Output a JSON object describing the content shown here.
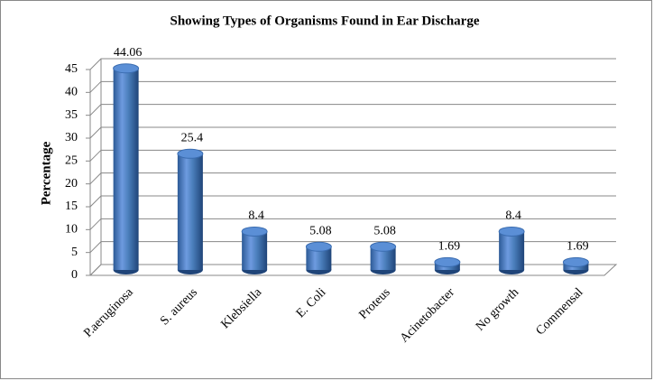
{
  "chart_data": {
    "type": "bar",
    "title": "Showing Types of Organisms Found in Ear Discharge",
    "y_label": "Percentage",
    "categories": [
      "P.aeruginosa",
      "S. aureus",
      "Klebsiella",
      "E. Coli",
      "Proteus",
      "Acinetobacter",
      "No growth",
      "Commensal"
    ],
    "values": [
      44.06,
      25.4,
      8.4,
      5.08,
      5.08,
      1.69,
      8.4,
      1.69
    ],
    "color": "#4a7ebb",
    "ylim": [
      0,
      45
    ],
    "yticks": [
      0,
      5,
      10,
      15,
      20,
      25,
      30,
      35,
      40,
      45
    ],
    "grid": true
  }
}
